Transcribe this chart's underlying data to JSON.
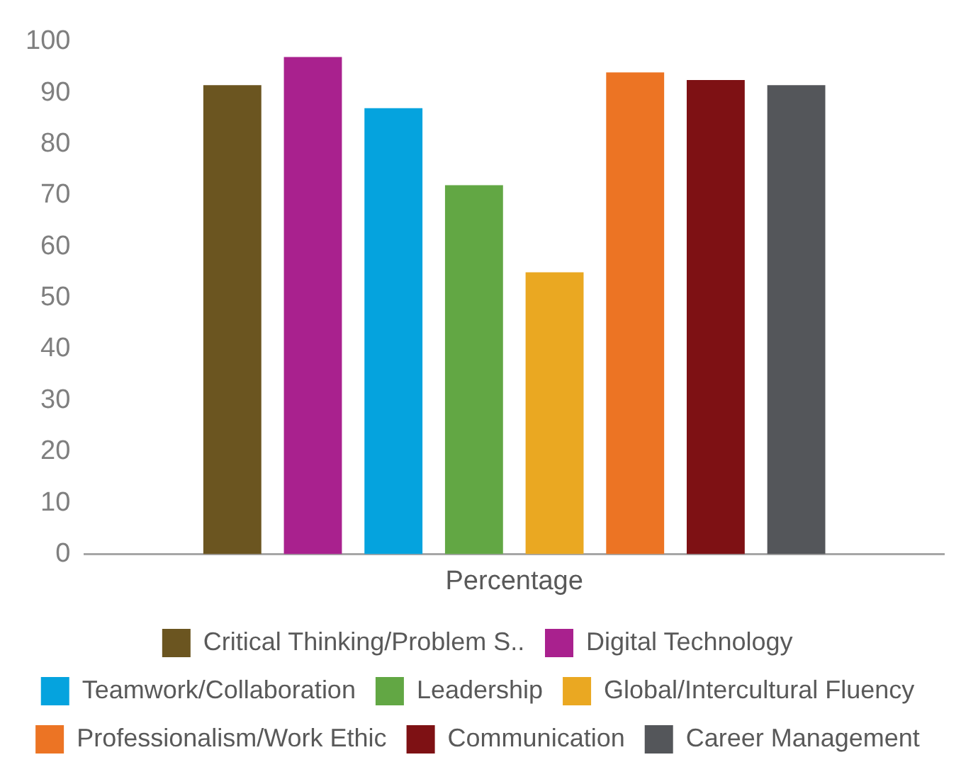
{
  "chart_data": {
    "type": "bar",
    "categories": [
      "Percentage"
    ],
    "ylim": [
      0,
      100
    ],
    "yticks": [
      0,
      10,
      20,
      30,
      40,
      50,
      60,
      70,
      80,
      90,
      100
    ],
    "legend": "bottom",
    "series": [
      {
        "name": "Critical Thinking/Problem S..",
        "color": "#6b5520",
        "values": [
          91.5
        ]
      },
      {
        "name": "Digital Technology",
        "color": "#a9218e",
        "values": [
          97
        ]
      },
      {
        "name": "Teamwork/Collaboration",
        "color": "#05a3de",
        "values": [
          87
        ]
      },
      {
        "name": "Leadership",
        "color": "#62a744",
        "values": [
          72
        ]
      },
      {
        "name": "Global/Intercultural Fluency",
        "color": "#eaa822",
        "values": [
          55
        ]
      },
      {
        "name": "Professionalism/Work Ethic",
        "color": "#ec7424",
        "values": [
          94
        ]
      },
      {
        "name": "Communication",
        "color": "#7e1114",
        "values": [
          92.5
        ]
      },
      {
        "name": "Career Management",
        "color": "#54565a",
        "values": [
          91.5
        ]
      }
    ]
  }
}
